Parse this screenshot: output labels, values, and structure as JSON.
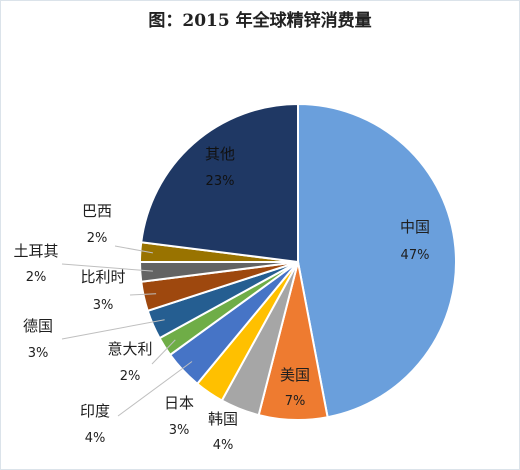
{
  "chart_data": {
    "type": "pie",
    "title": "图：2015 年全球精锌消费量",
    "unit": "%",
    "slices": [
      {
        "name": "中国",
        "value": 47,
        "label": "47%",
        "color": "#6a9fdc"
      },
      {
        "name": "美国",
        "value": 7,
        "label": "7%",
        "color": "#ee7b30"
      },
      {
        "name": "韩国",
        "value": 4,
        "label": "4%",
        "color": "#a6a6a6"
      },
      {
        "name": "日本",
        "value": 3,
        "label": "3%",
        "color": "#ffc000"
      },
      {
        "name": "印度",
        "value": 4,
        "label": "4%",
        "color": "#4674c6"
      },
      {
        "name": "意大利",
        "value": 2,
        "label": "2%",
        "color": "#6fad47"
      },
      {
        "name": "德国",
        "value": 3,
        "label": "3%",
        "color": "#255e91"
      },
      {
        "name": "比利时",
        "value": 3,
        "label": "3%",
        "color": "#9e480e"
      },
      {
        "name": "土耳其",
        "value": 2,
        "label": "2%",
        "color": "#636363"
      },
      {
        "name": "巴西",
        "value": 2,
        "label": "2%",
        "color": "#997300"
      },
      {
        "name": "其他",
        "value": 23,
        "label": "23%",
        "color": "#1f3864"
      }
    ]
  }
}
